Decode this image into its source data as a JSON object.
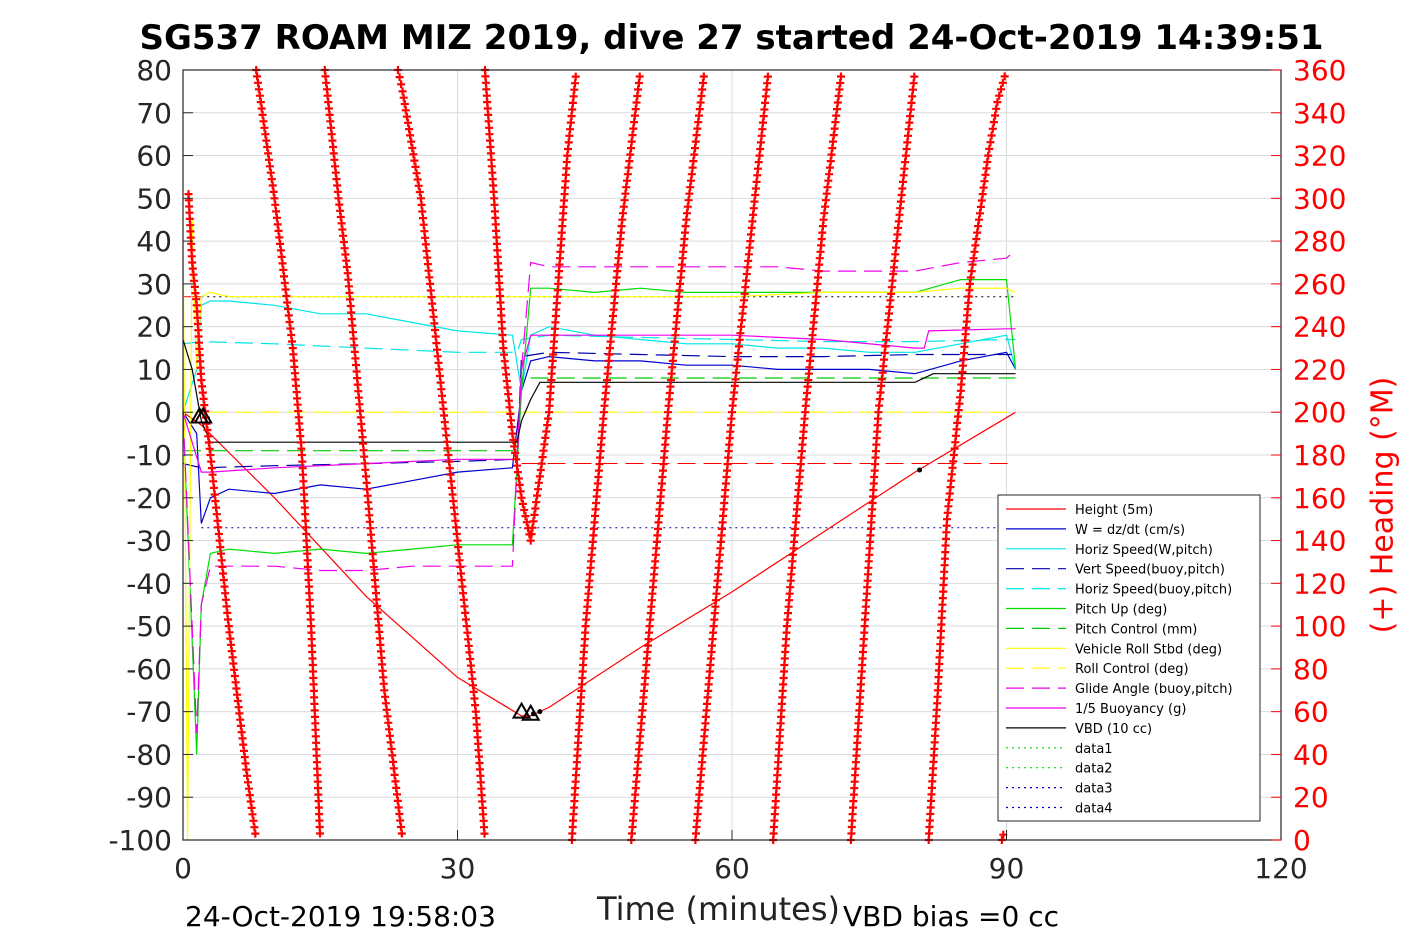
{
  "chart_data": {
    "type": "line",
    "title": "SG537 ROAM MIZ 2019, dive 27 started 24-Oct-2019 14:39:51",
    "xlabel": "Time (minutes)",
    "ylabel_right": "(+) Heading (°M)",
    "footer_left": "24-Oct-2019 19:58:03",
    "footer_right": "VBD bias =0 cc",
    "xlim": [
      0,
      120
    ],
    "ylim": [
      -100,
      80
    ],
    "ylim_right": [
      0,
      360
    ],
    "x_ticks": [
      "0",
      "30",
      "60",
      "90",
      "120"
    ],
    "y_ticks": [
      "80",
      "70",
      "60",
      "50",
      "40",
      "30",
      "20",
      "10",
      "0",
      "-10",
      "-20",
      "-30",
      "-40",
      "-50",
      "-60",
      "-70",
      "-80",
      "-90",
      "-100"
    ],
    "y_ticks_right": [
      "360",
      "340",
      "320",
      "300",
      "280",
      "260",
      "240",
      "220",
      "200",
      "180",
      "160",
      "140",
      "120",
      "100",
      "80",
      "60",
      "40",
      "20",
      "0"
    ],
    "grid": true,
    "legend_position": "lower-right",
    "series": [
      {
        "name": "Height (5m)",
        "color": "#ff0000",
        "style": "solid",
        "x": [
          0,
          2,
          10,
          20,
          30,
          37,
          38,
          40,
          50,
          60,
          70,
          80,
          91
        ],
        "y": [
          0,
          -3,
          -20,
          -43,
          -62,
          -71,
          -71,
          -69,
          -55,
          -42,
          -28,
          -14,
          0
        ]
      },
      {
        "name": "W = dz/dt (cm/s)",
        "color": "#0000cc",
        "style": "solid",
        "x": [
          0,
          1.5,
          2,
          3,
          5,
          10,
          15,
          20,
          25,
          30,
          36,
          37,
          38,
          40,
          45,
          50,
          55,
          60,
          65,
          70,
          75,
          80,
          85,
          90,
          91
        ],
        "y": [
          0,
          -5,
          -26,
          -20,
          -18,
          -19,
          -17,
          -18,
          -16,
          -14,
          -13,
          5,
          12,
          13,
          12,
          12,
          11,
          11,
          10,
          10,
          10,
          9,
          12,
          14,
          10
        ]
      },
      {
        "name": "Horiz Speed(W,pitch)",
        "color": "#00e5e5",
        "style": "solid",
        "x": [
          0,
          1.5,
          2,
          3,
          5,
          10,
          15,
          20,
          25,
          30,
          36,
          37,
          38,
          40,
          45,
          50,
          55,
          60,
          65,
          70,
          75,
          80,
          85,
          90,
          91
        ],
        "y": [
          0,
          10,
          25,
          26,
          26,
          25,
          23,
          23,
          21,
          19,
          18,
          5,
          18,
          20,
          18,
          17,
          16,
          16,
          15,
          15,
          14,
          14,
          16,
          18,
          10
        ]
      },
      {
        "name": "Vert Speed(buoy,pitch)",
        "color": "#0000aa",
        "style": "dashed",
        "x": [
          0,
          2,
          10,
          20,
          30,
          36.5,
          37,
          40,
          50,
          60,
          70,
          80,
          90,
          91
        ],
        "y": [
          -12,
          -13,
          -12.5,
          -12,
          -11.5,
          -11,
          13,
          14,
          13.5,
          13,
          13,
          13.5,
          13.5,
          13.5
        ]
      },
      {
        "name": "Horiz Speed(buoy,pitch)",
        "color": "#00e5e5",
        "style": "dashed",
        "x": [
          0,
          2,
          10,
          20,
          30,
          36.5,
          37,
          40,
          50,
          60,
          70,
          80,
          90,
          91
        ],
        "y": [
          16,
          16.5,
          16,
          15,
          14,
          14,
          17,
          18,
          17.5,
          17,
          16.5,
          16.5,
          17,
          17
        ]
      },
      {
        "name": "Pitch Up (deg)",
        "color": "#00dd00",
        "style": "solid",
        "x": [
          0,
          1.5,
          2,
          3,
          5,
          10,
          15,
          20,
          25,
          30,
          36,
          37,
          38,
          40,
          45,
          50,
          55,
          60,
          65,
          70,
          75,
          80,
          85,
          90,
          91
        ],
        "y": [
          0,
          -80,
          -45,
          -33,
          -32,
          -33,
          -32,
          -33,
          -32,
          -31,
          -31,
          5,
          29,
          29,
          28,
          29,
          28,
          28,
          28,
          28,
          28,
          28,
          31,
          31,
          10
        ]
      },
      {
        "name": "Pitch Control (mm)",
        "color": "#00cc00",
        "style": "dashed",
        "x": [
          0,
          2,
          2.1,
          36.5,
          37,
          91
        ],
        "y": [
          -9,
          -9,
          -9,
          -9,
          8,
          8
        ]
      },
      {
        "name": "Vehicle Roll Stbd (deg)",
        "color": "#ffff00",
        "style": "solid",
        "x": [
          0,
          0.5,
          1,
          1.5,
          2,
          3,
          5,
          10,
          20,
          30,
          36,
          40,
          50,
          60,
          70,
          80,
          85,
          90,
          91
        ],
        "y": [
          45,
          -100,
          45,
          10,
          27,
          28,
          27,
          27,
          27,
          27,
          27,
          27,
          27,
          27,
          28,
          28,
          29,
          29,
          28
        ]
      },
      {
        "name": "Roll Control (deg)",
        "color": "#ffff00",
        "style": "dashed",
        "x": [
          0,
          91
        ],
        "y": [
          0,
          0
        ]
      },
      {
        "name": "Glide Angle (buoy,pitch)",
        "color": "#ee00ee",
        "style": "dashed",
        "x": [
          0,
          1.5,
          2,
          3,
          5,
          10,
          15,
          20,
          25,
          30,
          36,
          37,
          38,
          40,
          45,
          50,
          55,
          60,
          65,
          70,
          75,
          80,
          85,
          90,
          91
        ],
        "y": [
          0,
          -75,
          -45,
          -36,
          -36,
          -36,
          -37,
          -37,
          -36,
          -36,
          -36,
          10,
          35,
          34,
          34,
          34,
          34,
          34,
          34,
          33,
          33,
          33,
          35,
          36,
          38
        ]
      },
      {
        "name": "1/5 Buoyancy (g)",
        "color": "#ee00ee",
        "style": "solid",
        "x": [
          0,
          2,
          3,
          10,
          20,
          30,
          36.5,
          37,
          38,
          40,
          50,
          60,
          70,
          80,
          81,
          81.5,
          90,
          91
        ],
        "y": [
          0,
          -14,
          -14,
          -13,
          -12,
          -11,
          -11,
          10,
          18,
          18,
          18,
          18,
          17,
          15,
          15,
          19,
          19.5,
          19.5
        ]
      },
      {
        "name": "VBD (10 cc)",
        "color": "#000000",
        "style": "solid",
        "x": [
          0,
          1,
          2,
          3,
          10,
          20,
          30,
          36.5,
          37,
          38,
          39,
          40,
          50,
          60,
          70,
          80,
          82,
          85,
          90,
          91
        ],
        "y": [
          17,
          10,
          -2,
          -7,
          -7,
          -7,
          -7,
          -7,
          -2,
          3,
          7,
          7,
          7,
          7,
          7,
          7,
          9,
          9,
          9,
          9
        ]
      },
      {
        "name": "data1",
        "color": "#00dd00",
        "style": "dotted",
        "x": [],
        "y": []
      },
      {
        "name": "data2",
        "color": "#00dd00",
        "style": "dotted",
        "x": [],
        "y": []
      },
      {
        "name": "data3",
        "color": "#0000cc",
        "style": "dotted",
        "x": [],
        "y": []
      },
      {
        "name": "data4",
        "color": "#0000cc",
        "style": "dotted",
        "x": [],
        "y": []
      }
    ],
    "reference_lines": [
      {
        "color": "#000000",
        "style": "dotted",
        "y": 27,
        "x_range": [
          2,
          91
        ]
      },
      {
        "color": "#0000aa",
        "style": "dotted",
        "y": -27,
        "x_range": [
          2,
          91
        ]
      },
      {
        "color": "#ff0000",
        "style": "dashed",
        "y": -12,
        "x_range": [
          37,
          91
        ]
      },
      {
        "color": "#ff0000",
        "style": "dashed",
        "y": 27,
        "x_range": [
          0,
          2
        ]
      }
    ],
    "heading_series": {
      "name": "Heading",
      "axis": "right",
      "color": "#ff0000",
      "marker": "+",
      "segments": [
        {
          "x": [
            0.6,
            1,
            1.5,
            2,
            3,
            4,
            5,
            6,
            7,
            8
          ],
          "y": [
            302,
            270,
            250,
            215,
            180,
            140,
            100,
            65,
            30,
            0
          ]
        },
        {
          "x": [
            8,
            10,
            12,
            13,
            14,
            15
          ],
          "y": [
            360,
            300,
            230,
            180,
            100,
            0
          ]
        },
        {
          "x": [
            15.5,
            17,
            18,
            20,
            22,
            24
          ],
          "y": [
            360,
            300,
            265,
            170,
            70,
            0
          ]
        },
        {
          "x": [
            23.5,
            24,
            26,
            28,
            30,
            32,
            33
          ],
          "y": [
            360,
            350,
            300,
            220,
            140,
            60,
            0
          ]
        },
        {
          "x": [
            33,
            34,
            35,
            36,
            37,
            38
          ],
          "y": [
            360,
            300,
            230,
            190,
            160,
            140
          ]
        },
        {
          "x": [
            38,
            39,
            40,
            41,
            42,
            43
          ],
          "y": [
            140,
            170,
            200,
            260,
            320,
            360
          ]
        },
        {
          "x": [
            42.5,
            44,
            46,
            48,
            50
          ],
          "y": [
            0,
            100,
            200,
            290,
            360
          ]
        },
        {
          "x": [
            49,
            51,
            53,
            55,
            57
          ],
          "y": [
            0,
            100,
            200,
            290,
            360
          ]
        },
        {
          "x": [
            56,
            58,
            60,
            62,
            64
          ],
          "y": [
            0,
            100,
            200,
            280,
            360
          ]
        },
        {
          "x": [
            64.5,
            66,
            68,
            70,
            72
          ],
          "y": [
            0,
            100,
            200,
            290,
            360
          ]
        },
        {
          "x": [
            73,
            74.5,
            76,
            78,
            80
          ],
          "y": [
            0,
            100,
            200,
            280,
            360
          ]
        },
        {
          "x": [
            81.5,
            82.5,
            83.5,
            85,
            86,
            88,
            89,
            90
          ],
          "y": [
            0,
            70,
            150,
            210,
            260,
            320,
            345,
            360
          ]
        },
        {
          "x": [
            89.5,
            89.8
          ],
          "y": [
            0,
            5
          ]
        }
      ]
    },
    "markers": [
      {
        "shape": "triangle",
        "x": 1.8,
        "y": -1
      },
      {
        "shape": "triangle",
        "x": 2.2,
        "y": -1
      },
      {
        "shape": "triangle",
        "x": 37,
        "y": -70
      },
      {
        "shape": "triangle",
        "x": 38,
        "y": -70.5
      },
      {
        "shape": "dot",
        "x": 38.3,
        "y": -70.5
      },
      {
        "shape": "dot",
        "x": 39,
        "y": -70
      },
      {
        "shape": "dot",
        "x": 80.5,
        "y": -13.5
      }
    ]
  }
}
